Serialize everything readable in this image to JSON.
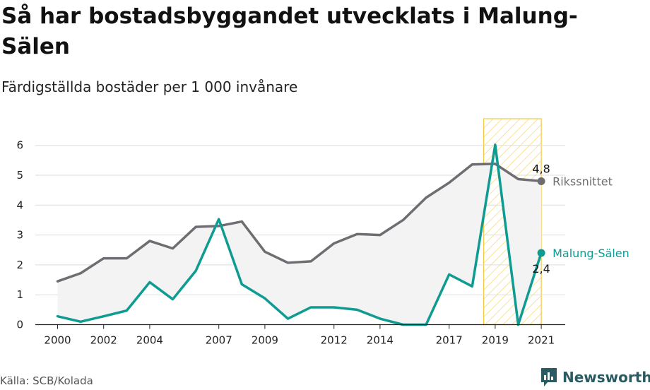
{
  "header": {
    "title": "Så har bostadsbyggandet utvecklats i Malung-Sälen",
    "subtitle": "Färdigställda bostäder per 1 000 invånare"
  },
  "footer": {
    "source": "Källa: SCB/Kolada",
    "brand": "Newsworthy"
  },
  "colors": {
    "national": "#6f6d71",
    "local": "#0e9c92",
    "highlight": "#f5c842",
    "fill": "#f3f3f3"
  },
  "chart_data": {
    "type": "line",
    "x": [
      2000,
      2001,
      2002,
      2003,
      2004,
      2005,
      2006,
      2007,
      2008,
      2009,
      2010,
      2011,
      2012,
      2013,
      2014,
      2015,
      2016,
      2017,
      2018,
      2019,
      2020,
      2021
    ],
    "x_tick_labels": [
      "2000",
      "2002",
      "2004",
      "2007",
      "2009",
      "2012",
      "2014",
      "2017",
      "2019",
      "2021"
    ],
    "y_ticks": [
      "0",
      "1",
      "2",
      "3",
      "4",
      "5",
      "6"
    ],
    "ylim": [
      0,
      6.2
    ],
    "grid": true,
    "highlight_range": [
      2018.5,
      2021
    ],
    "series": [
      {
        "name": "Rikssnittet",
        "values": [
          1.45,
          1.72,
          2.22,
          2.22,
          2.8,
          2.55,
          3.27,
          3.3,
          3.45,
          2.44,
          2.07,
          2.12,
          2.72,
          3.03,
          3.0,
          3.5,
          4.25,
          4.75,
          5.36,
          5.38,
          4.87,
          4.8
        ],
        "last_label": "4,8"
      },
      {
        "name": "Malung-Sälen",
        "values": [
          0.28,
          0.1,
          0.28,
          0.47,
          1.42,
          0.85,
          1.8,
          3.53,
          1.35,
          0.88,
          0.2,
          0.58,
          0.58,
          0.5,
          0.2,
          0.0,
          0.0,
          1.68,
          1.28,
          6.02,
          0.0,
          2.4
        ],
        "last_label": "2,4"
      }
    ]
  }
}
